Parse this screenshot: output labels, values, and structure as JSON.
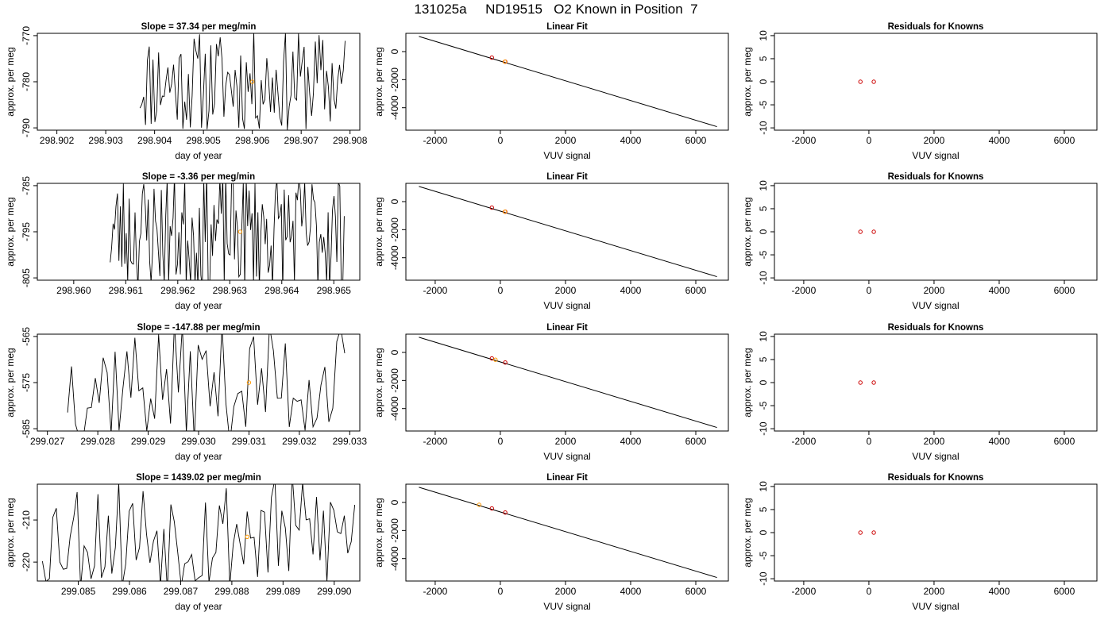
{
  "page_title": "131025a     ND19515   O2 Known in Position  7",
  "colors": {
    "series_line": "#000000",
    "highlight_point": "#ff9900",
    "known_point": "#cc0000"
  },
  "chart_data": [
    {
      "id": "r1-timeseries",
      "type": "line",
      "title": "Slope =  37.34  per meg/min",
      "xlabel": "day of year",
      "ylabel": "approx. per meg",
      "xlim": [
        298.9016,
        298.9082
      ],
      "ylim": [
        -790.5,
        -769.5
      ],
      "xticks": [
        "298.902",
        "298.903",
        "298.904",
        "298.905",
        "298.906",
        "298.907",
        "298.908"
      ],
      "yticks": [
        "-770",
        "-780",
        "-790"
      ],
      "trace": {
        "x_start": 298.9037,
        "x_end": 298.9079,
        "segments": 110,
        "band": [
          -791,
          -769
        ],
        "seed": 11
      },
      "highlight_point": {
        "x": 298.906,
        "y": -780
      }
    },
    {
      "id": "r1-linearfit",
      "type": "scatter",
      "title": "Linear Fit",
      "xlabel": "VUV signal",
      "ylabel": "approx. per meg",
      "xlim": [
        -2900,
        7000
      ],
      "ylim": [
        -5600,
        1300
      ],
      "xticks": [
        "-2000",
        "0",
        "2000",
        "4000",
        "6000"
      ],
      "yticks": [
        "0",
        "-2000",
        "-4000"
      ],
      "fit_line": {
        "x": [
          -2500,
          6650
        ],
        "y": [
          1080,
          -5350
        ]
      },
      "known_points": [
        {
          "x": -260,
          "y": -430
        },
        {
          "x": 150,
          "y": -720
        }
      ],
      "highlight_point": {
        "x": 140,
        "y": -720
      }
    },
    {
      "id": "r1-residuals",
      "type": "scatter",
      "title": "Residuals for Knowns",
      "xlabel": "VUV signal",
      "ylabel": "approx. per meg",
      "xlim": [
        -2900,
        7000
      ],
      "ylim": [
        -10.5,
        10.5
      ],
      "xticks": [
        "-2000",
        "0",
        "2000",
        "4000",
        "6000"
      ],
      "yticks": [
        "10",
        "5",
        "0",
        "-5",
        "-10"
      ],
      "known_points": [
        {
          "x": -260,
          "y": 0
        },
        {
          "x": 150,
          "y": 0
        }
      ]
    },
    {
      "id": "r2-timeseries",
      "type": "line",
      "title": "Slope =  -3.36  per meg/min",
      "xlabel": "day of year",
      "ylabel": "approx. per meg",
      "xlim": [
        298.9593,
        298.9655
      ],
      "ylim": [
        -805.5,
        -784.5
      ],
      "xticks": [
        "298.960",
        "298.961",
        "298.962",
        "298.963",
        "298.964",
        "298.965"
      ],
      "yticks": [
        "-785",
        "-795",
        "-805"
      ],
      "trace": {
        "x_start": 298.9607,
        "x_end": 298.9652,
        "segments": 160,
        "band": [
          -808,
          -782
        ],
        "seed": 23
      },
      "highlight_point": {
        "x": 298.9632,
        "y": -795
      }
    },
    {
      "id": "r2-linearfit",
      "type": "scatter",
      "title": "Linear Fit",
      "xlabel": "VUV signal",
      "ylabel": "approx. per meg",
      "xlim": [
        -2900,
        7000
      ],
      "ylim": [
        -5600,
        1300
      ],
      "xticks": [
        "-2000",
        "0",
        "2000",
        "4000",
        "6000"
      ],
      "yticks": [
        "0",
        "-2000",
        "-4000"
      ],
      "fit_line": {
        "x": [
          -2500,
          6650
        ],
        "y": [
          1080,
          -5350
        ]
      },
      "known_points": [
        {
          "x": -260,
          "y": -430
        },
        {
          "x": 150,
          "y": -720
        }
      ],
      "highlight_point": {
        "x": 140,
        "y": -720
      }
    },
    {
      "id": "r2-residuals",
      "type": "scatter",
      "title": "Residuals for Knowns",
      "xlabel": "VUV signal",
      "ylabel": "approx. per meg",
      "xlim": [
        -2900,
        7000
      ],
      "ylim": [
        -10.5,
        10.5
      ],
      "xticks": [
        "-2000",
        "0",
        "2000",
        "4000",
        "6000"
      ],
      "yticks": [
        "10",
        "5",
        "0",
        "-5",
        "-10"
      ],
      "known_points": [
        {
          "x": -260,
          "y": 0
        },
        {
          "x": 150,
          "y": 0
        }
      ]
    },
    {
      "id": "r3-timeseries",
      "type": "line",
      "title": "Slope =  -147.88  per meg/min",
      "xlabel": "day of year",
      "ylabel": "approx. per meg",
      "xlim": [
        299.0268,
        299.0332
      ],
      "ylim": [
        -585.5,
        -564.5
      ],
      "xticks": [
        "299.027",
        "299.028",
        "299.029",
        "299.030",
        "299.031",
        "299.032",
        "299.033"
      ],
      "yticks": [
        "-565",
        "-575",
        "-585"
      ],
      "trace": {
        "x_start": 299.0274,
        "x_end": 299.0329,
        "segments": 70,
        "band": [
          -588,
          -562
        ],
        "seed": 37
      },
      "highlight_point": {
        "x": 299.031,
        "y": -575
      }
    },
    {
      "id": "r3-linearfit",
      "type": "scatter",
      "title": "Linear Fit",
      "xlabel": "VUV signal",
      "ylabel": "approx. per meg",
      "xlim": [
        -2900,
        7000
      ],
      "ylim": [
        -5600,
        1300
      ],
      "xticks": [
        "-2000",
        "0",
        "2000",
        "4000",
        "6000"
      ],
      "yticks": [
        "0",
        "-2000",
        "-4000"
      ],
      "fit_line": {
        "x": [
          -2500,
          6650
        ],
        "y": [
          1080,
          -5350
        ]
      },
      "known_points": [
        {
          "x": -260,
          "y": -430
        },
        {
          "x": 150,
          "y": -720
        }
      ],
      "highlight_point": {
        "x": -150,
        "y": -520
      }
    },
    {
      "id": "r3-residuals",
      "type": "scatter",
      "title": "Residuals for Knowns",
      "xlabel": "VUV signal",
      "ylabel": "approx. per meg",
      "xlim": [
        -2900,
        7000
      ],
      "ylim": [
        -10.5,
        10.5
      ],
      "xticks": [
        "-2000",
        "0",
        "2000",
        "4000",
        "6000"
      ],
      "yticks": [
        "10",
        "5",
        "0",
        "-5",
        "-10"
      ],
      "known_points": [
        {
          "x": -260,
          "y": 0
        },
        {
          "x": 150,
          "y": 0
        }
      ]
    },
    {
      "id": "r4-timeseries",
      "type": "line",
      "title": "Slope =  1439.02  per meg/min",
      "xlabel": "day of year",
      "ylabel": "approx. per meg",
      "xlim": [
        299.0842,
        299.0905
      ],
      "ylim": [
        -224.5,
        -201.5
      ],
      "xticks": [
        "299.085",
        "299.086",
        "299.087",
        "299.088",
        "299.089",
        "299.090"
      ],
      "yticks": [
        "-210",
        "-220"
      ],
      "trace": {
        "x_start": 299.0843,
        "x_end": 299.0904,
        "segments": 90,
        "band": [
          -227,
          -199
        ],
        "seed": 53
      },
      "highlight_point": {
        "x": 299.0883,
        "y": -214
      }
    },
    {
      "id": "r4-linearfit",
      "type": "scatter",
      "title": "Linear Fit",
      "xlabel": "VUV signal",
      "ylabel": "approx. per meg",
      "xlim": [
        -2900,
        7000
      ],
      "ylim": [
        -5600,
        1300
      ],
      "xticks": [
        "-2000",
        "0",
        "2000",
        "4000",
        "6000"
      ],
      "yticks": [
        "0",
        "-2000",
        "-4000"
      ],
      "fit_line": {
        "x": [
          -2500,
          6650
        ],
        "y": [
          1080,
          -5350
        ]
      },
      "known_points": [
        {
          "x": -260,
          "y": -430
        },
        {
          "x": 150,
          "y": -720
        }
      ],
      "highlight_point": {
        "x": -650,
        "y": -170
      }
    },
    {
      "id": "r4-residuals",
      "type": "scatter",
      "title": "Residuals for Knowns",
      "xlabel": "VUV signal",
      "ylabel": "approx. per meg",
      "xlim": [
        -2900,
        7000
      ],
      "ylim": [
        -10.5,
        10.5
      ],
      "xticks": [
        "-2000",
        "0",
        "2000",
        "4000",
        "6000"
      ],
      "yticks": [
        "10",
        "5",
        "0",
        "-5",
        "-10"
      ],
      "known_points": [
        {
          "x": -260,
          "y": 0
        },
        {
          "x": 150,
          "y": 0
        }
      ]
    }
  ]
}
